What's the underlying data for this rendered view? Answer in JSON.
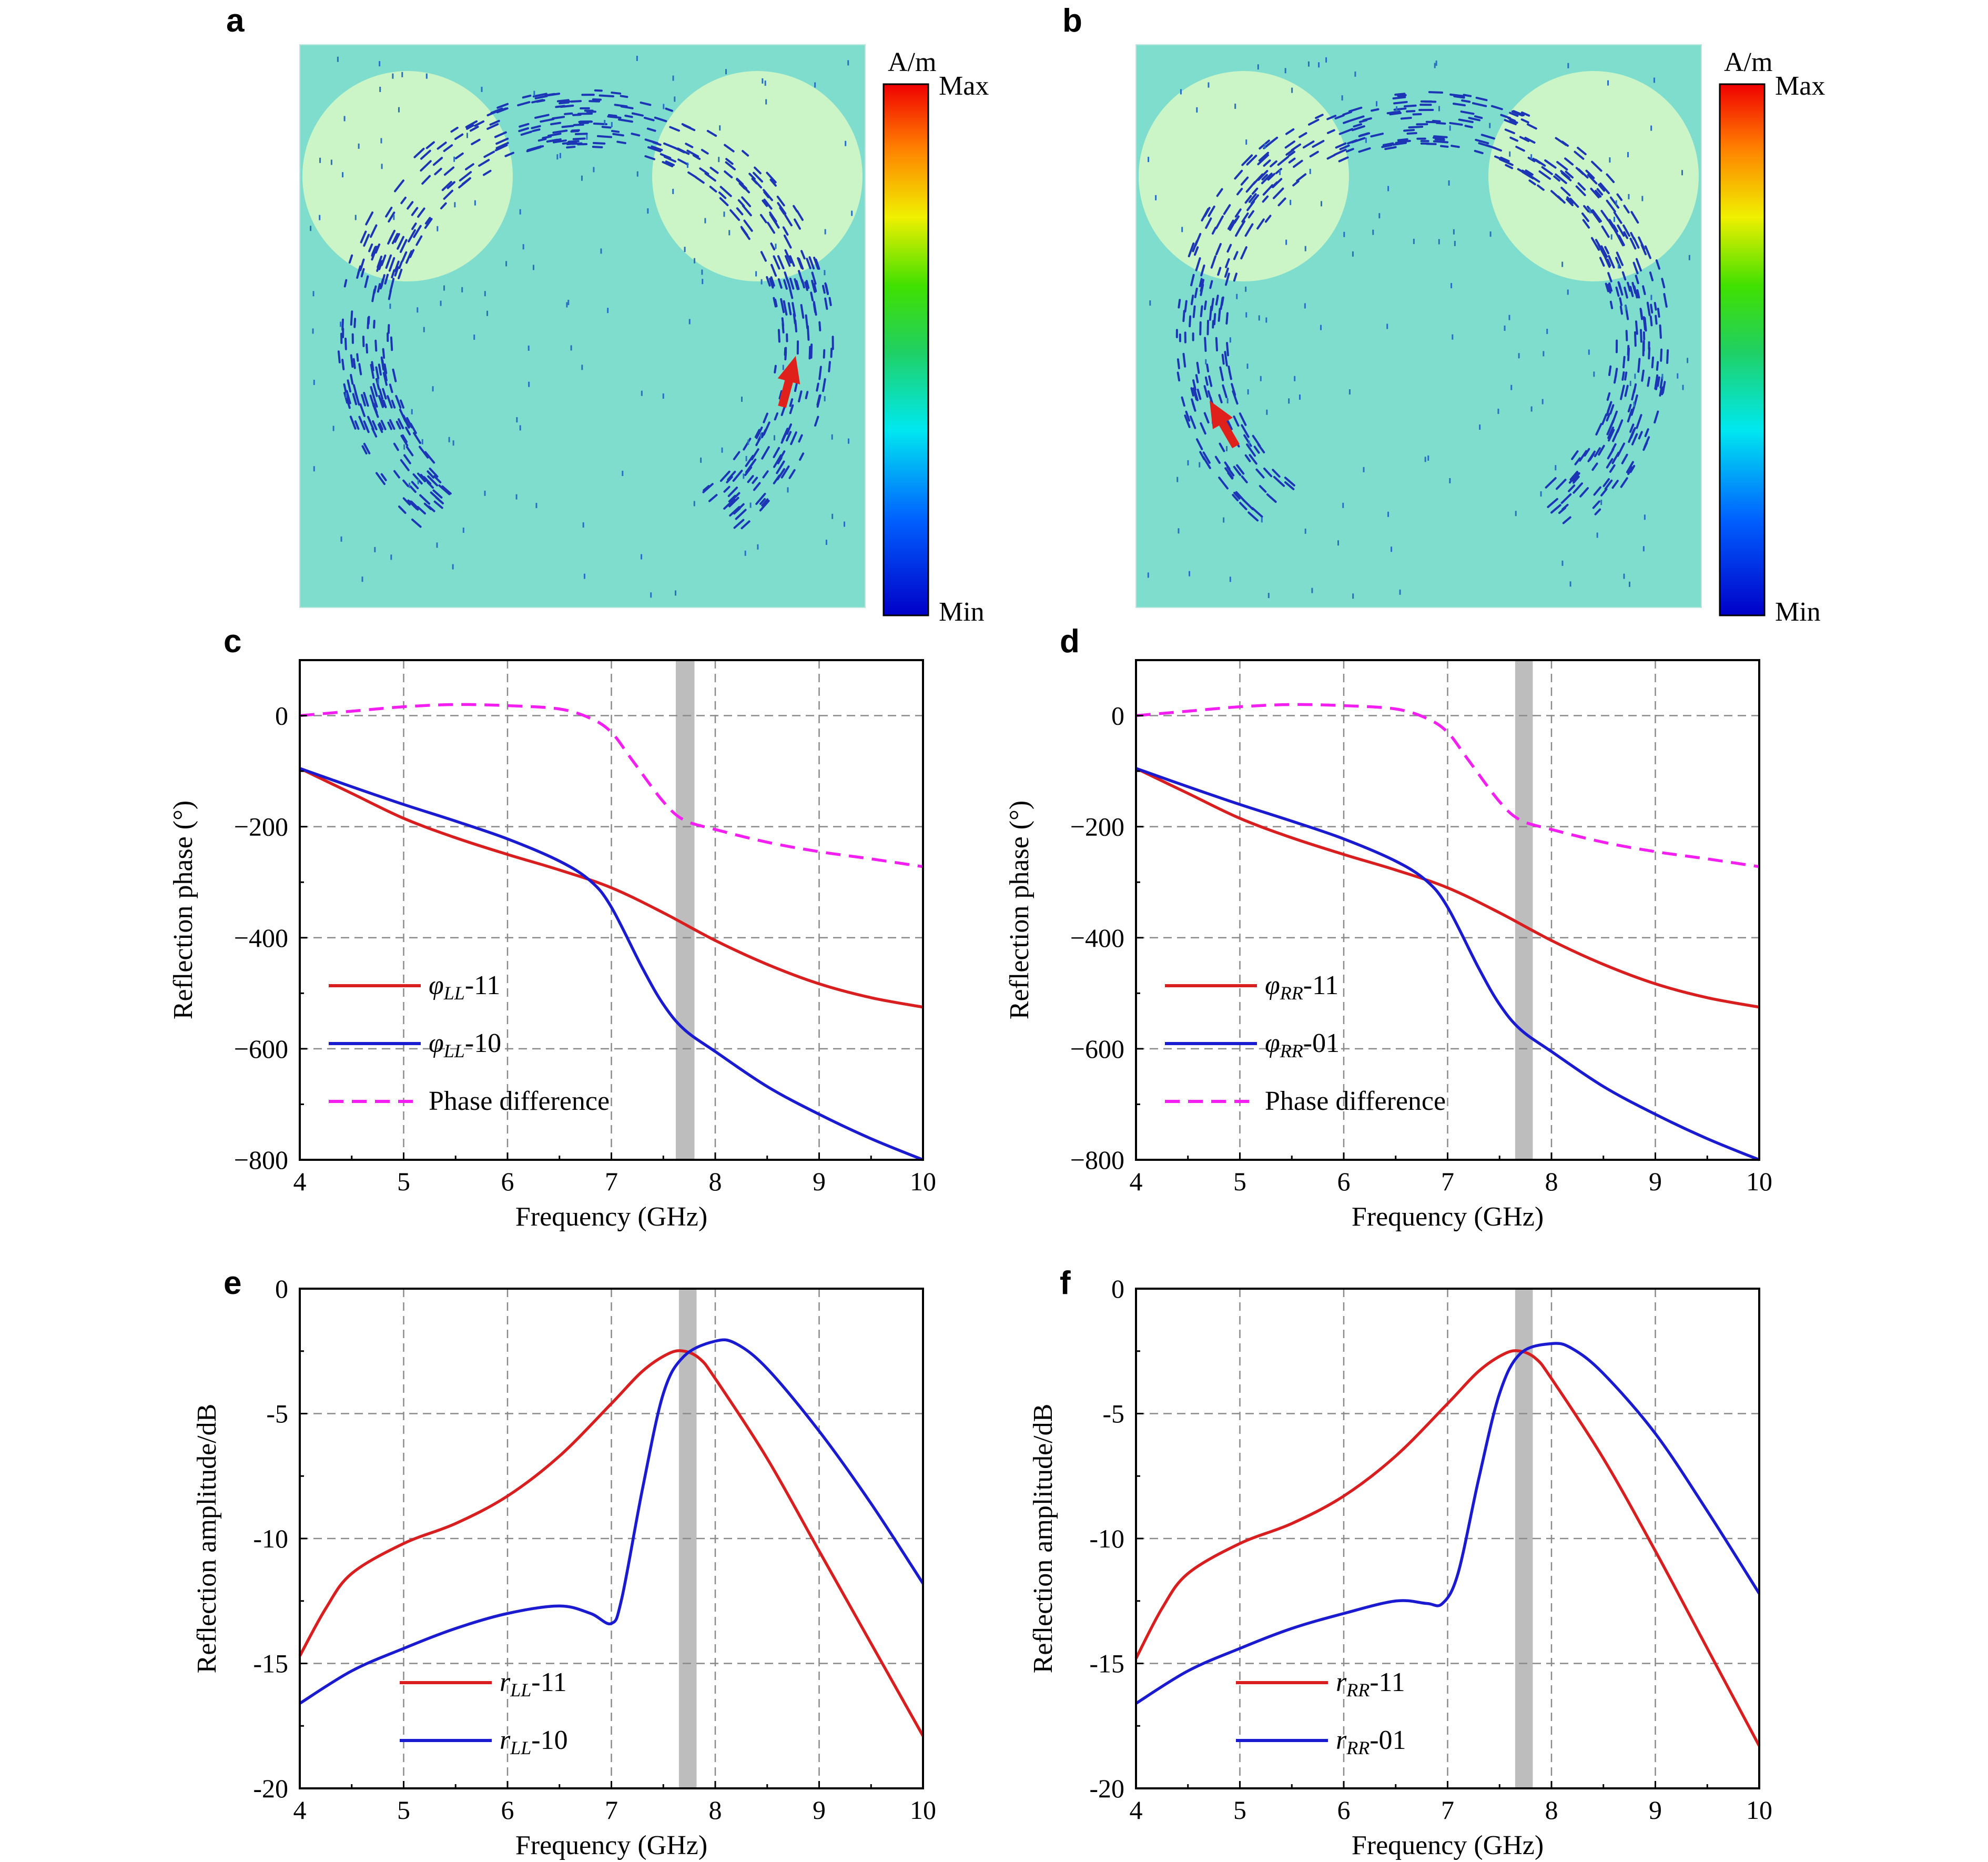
{
  "figure": {
    "panels_sim": [
      {
        "label": "a",
        "colorbar": {
          "unit": "A/m",
          "max": "Max",
          "min": "Min"
        },
        "hotspot": "right"
      },
      {
        "label": "b",
        "colorbar": {
          "unit": "A/m",
          "max": "Max",
          "min": "Min"
        },
        "hotspot": "left"
      }
    ],
    "colors": {
      "background": "#7fddce",
      "circle": "#cbf5c6",
      "arrows": "#1b35b5",
      "hot": "#e0201a",
      "red": "#d81e1e",
      "blue": "#1a1ad0",
      "magenta": "#f21ff0",
      "band": "#bdbdbd",
      "grid": "#8a8a8a"
    }
  },
  "chart_data": [
    {
      "panel": "c",
      "type": "line",
      "xlabel": "Frequency (GHz)",
      "ylabel": "Reflection phase (°)",
      "xlim": [
        4,
        10
      ],
      "ylim": [
        -800,
        100
      ],
      "xticks": [
        4,
        5,
        6,
        7,
        8,
        9,
        10
      ],
      "yticks": [
        0,
        -200,
        -400,
        -600,
        -800
      ],
      "xtick_labels": [
        "4",
        "5",
        "6",
        "7",
        "8",
        "9",
        "10"
      ],
      "ytick_labels": [
        "0",
        "−200",
        "−400",
        "−600",
        "−800"
      ],
      "band": [
        7.62,
        7.8
      ],
      "grid": true,
      "legend_position": "bottom-left",
      "series": [
        {
          "name_main": "φ",
          "name_sub": "LL",
          "name_tail": "-11",
          "color": "#d81e1e",
          "dash": false,
          "x": [
            4,
            4.5,
            5,
            5.5,
            6,
            6.5,
            7,
            7.5,
            8,
            8.5,
            9,
            9.5,
            10
          ],
          "y": [
            -95,
            -140,
            -185,
            -220,
            -250,
            -278,
            -310,
            -355,
            -405,
            -448,
            -483,
            -508,
            -525
          ]
        },
        {
          "name_main": "φ",
          "name_sub": "LL",
          "name_tail": "-10",
          "color": "#1a1ad0",
          "dash": false,
          "x": [
            4,
            4.5,
            5,
            5.5,
            6,
            6.5,
            6.8,
            7,
            7.3,
            7.5,
            7.7,
            8,
            8.5,
            9,
            9.5,
            10
          ],
          "y": [
            -95,
            -128,
            -160,
            -190,
            -222,
            -262,
            -298,
            -345,
            -455,
            -520,
            -565,
            -605,
            -668,
            -718,
            -762,
            -800
          ]
        },
        {
          "name_main": "Phase difference",
          "name_sub": "",
          "name_tail": "",
          "color": "#f21ff0",
          "dash": true,
          "x": [
            4,
            4.5,
            5,
            5.5,
            6,
            6.5,
            6.8,
            7,
            7.2,
            7.5,
            7.7,
            8,
            8.5,
            9,
            9.5,
            10
          ],
          "y": [
            0,
            8,
            16,
            20,
            18,
            12,
            -5,
            -30,
            -80,
            -155,
            -188,
            -205,
            -228,
            -245,
            -258,
            -272
          ]
        }
      ]
    },
    {
      "panel": "d",
      "type": "line",
      "xlabel": "Frequency (GHz)",
      "ylabel": "Reflection phase (°)",
      "xlim": [
        4,
        10
      ],
      "ylim": [
        -800,
        100
      ],
      "xticks": [
        4,
        5,
        6,
        7,
        8,
        9,
        10
      ],
      "yticks": [
        0,
        -200,
        -400,
        -600,
        -800
      ],
      "xtick_labels": [
        "4",
        "5",
        "6",
        "7",
        "8",
        "9",
        "10"
      ],
      "ytick_labels": [
        "0",
        "−200",
        "−400",
        "−600",
        "−800"
      ],
      "band": [
        7.65,
        7.82
      ],
      "grid": true,
      "legend_position": "bottom-left",
      "series": [
        {
          "name_main": "φ",
          "name_sub": "RR",
          "name_tail": "-11",
          "color": "#d81e1e",
          "dash": false,
          "x": [
            4,
            4.5,
            5,
            5.5,
            6,
            6.5,
            7,
            7.5,
            8,
            8.5,
            9,
            9.5,
            10
          ],
          "y": [
            -95,
            -140,
            -185,
            -220,
            -250,
            -278,
            -310,
            -355,
            -405,
            -448,
            -483,
            -508,
            -525
          ]
        },
        {
          "name_main": "φ",
          "name_sub": "RR",
          "name_tail": "-01",
          "color": "#1a1ad0",
          "dash": false,
          "x": [
            4,
            4.5,
            5,
            5.5,
            6,
            6.5,
            6.8,
            7,
            7.3,
            7.5,
            7.7,
            8,
            8.5,
            9,
            9.5,
            10
          ],
          "y": [
            -95,
            -128,
            -160,
            -190,
            -222,
            -262,
            -298,
            -345,
            -455,
            -520,
            -565,
            -605,
            -668,
            -718,
            -762,
            -800
          ]
        },
        {
          "name_main": "Phase difference",
          "name_sub": "",
          "name_tail": "",
          "color": "#f21ff0",
          "dash": true,
          "x": [
            4,
            4.5,
            5,
            5.5,
            6,
            6.5,
            6.8,
            7,
            7.2,
            7.5,
            7.7,
            8,
            8.5,
            9,
            9.5,
            10
          ],
          "y": [
            0,
            8,
            16,
            20,
            18,
            12,
            -5,
            -30,
            -80,
            -155,
            -188,
            -205,
            -228,
            -245,
            -258,
            -272
          ]
        }
      ]
    },
    {
      "panel": "e",
      "type": "line",
      "xlabel": "Frequency (GHz)",
      "ylabel": "Reflection amplitude/dB",
      "xlim": [
        4,
        10
      ],
      "ylim": [
        -20,
        0
      ],
      "xticks": [
        4,
        5,
        6,
        7,
        8,
        9,
        10
      ],
      "yticks": [
        0,
        -5,
        -10,
        -15,
        -20
      ],
      "xtick_labels": [
        "4",
        "5",
        "6",
        "7",
        "8",
        "9",
        "10"
      ],
      "ytick_labels": [
        "0",
        "-5",
        "-10",
        "-15",
        "-20"
      ],
      "band": [
        7.65,
        7.82
      ],
      "grid": true,
      "legend_position": "bottom-left",
      "series": [
        {
          "name_main": "r",
          "name_sub": "LL",
          "name_tail": "-11",
          "color": "#d81e1e",
          "dash": false,
          "x": [
            4,
            4.25,
            4.5,
            5,
            5.5,
            6,
            6.5,
            7,
            7.3,
            7.55,
            7.7,
            7.85,
            8,
            8.5,
            9,
            9.5,
            10
          ],
          "y": [
            -14.7,
            -12.8,
            -11.4,
            -10.2,
            -9.4,
            -8.3,
            -6.7,
            -4.6,
            -3.3,
            -2.6,
            -2.5,
            -2.8,
            -3.6,
            -6.8,
            -10.5,
            -14.2,
            -17.9
          ]
        },
        {
          "name_main": "r",
          "name_sub": "LL",
          "name_tail": "-10",
          "color": "#1a1ad0",
          "dash": false,
          "x": [
            4,
            4.5,
            5,
            5.5,
            6,
            6.5,
            6.8,
            7,
            7.1,
            7.3,
            7.5,
            7.7,
            8,
            8.2,
            8.5,
            9,
            9.5,
            10
          ],
          "y": [
            -16.6,
            -15.3,
            -14.4,
            -13.6,
            -13.0,
            -12.7,
            -13.0,
            -13.4,
            -12.4,
            -8.0,
            -4.2,
            -2.7,
            -2.1,
            -2.2,
            -3.2,
            -5.7,
            -8.6,
            -11.8
          ]
        }
      ]
    },
    {
      "panel": "f",
      "type": "line",
      "xlabel": "Frequency (GHz)",
      "ylabel": "Reflection amplitude/dB",
      "xlim": [
        4,
        10
      ],
      "ylim": [
        -20,
        0
      ],
      "xticks": [
        4,
        5,
        6,
        7,
        8,
        9,
        10
      ],
      "yticks": [
        0,
        -5,
        -10,
        -15,
        -20
      ],
      "xtick_labels": [
        "4",
        "5",
        "6",
        "7",
        "8",
        "9",
        "10"
      ],
      "ytick_labels": [
        "0",
        "-5",
        "-10",
        "-15",
        "-20"
      ],
      "band": [
        7.65,
        7.82
      ],
      "grid": true,
      "legend_position": "bottom-left",
      "series": [
        {
          "name_main": "r",
          "name_sub": "RR",
          "name_tail": "-11",
          "color": "#d81e1e",
          "dash": false,
          "x": [
            4,
            4.25,
            4.5,
            5,
            5.5,
            6,
            6.5,
            7,
            7.3,
            7.55,
            7.7,
            7.85,
            8,
            8.5,
            9,
            9.5,
            10
          ],
          "y": [
            -14.8,
            -12.8,
            -11.4,
            -10.2,
            -9.4,
            -8.3,
            -6.7,
            -4.6,
            -3.3,
            -2.6,
            -2.5,
            -2.8,
            -3.6,
            -6.8,
            -10.5,
            -14.4,
            -18.3
          ]
        },
        {
          "name_main": "r",
          "name_sub": "RR",
          "name_tail": "-01",
          "color": "#1a1ad0",
          "dash": false,
          "x": [
            4,
            4.5,
            5,
            5.5,
            6,
            6.5,
            6.8,
            6.95,
            7.1,
            7.3,
            7.5,
            7.7,
            8,
            8.2,
            8.5,
            9,
            9.5,
            10
          ],
          "y": [
            -16.6,
            -15.3,
            -14.4,
            -13.6,
            -13.0,
            -12.5,
            -12.6,
            -12.6,
            -11.4,
            -7.6,
            -4.2,
            -2.6,
            -2.2,
            -2.4,
            -3.4,
            -5.8,
            -8.9,
            -12.2
          ]
        }
      ]
    }
  ]
}
